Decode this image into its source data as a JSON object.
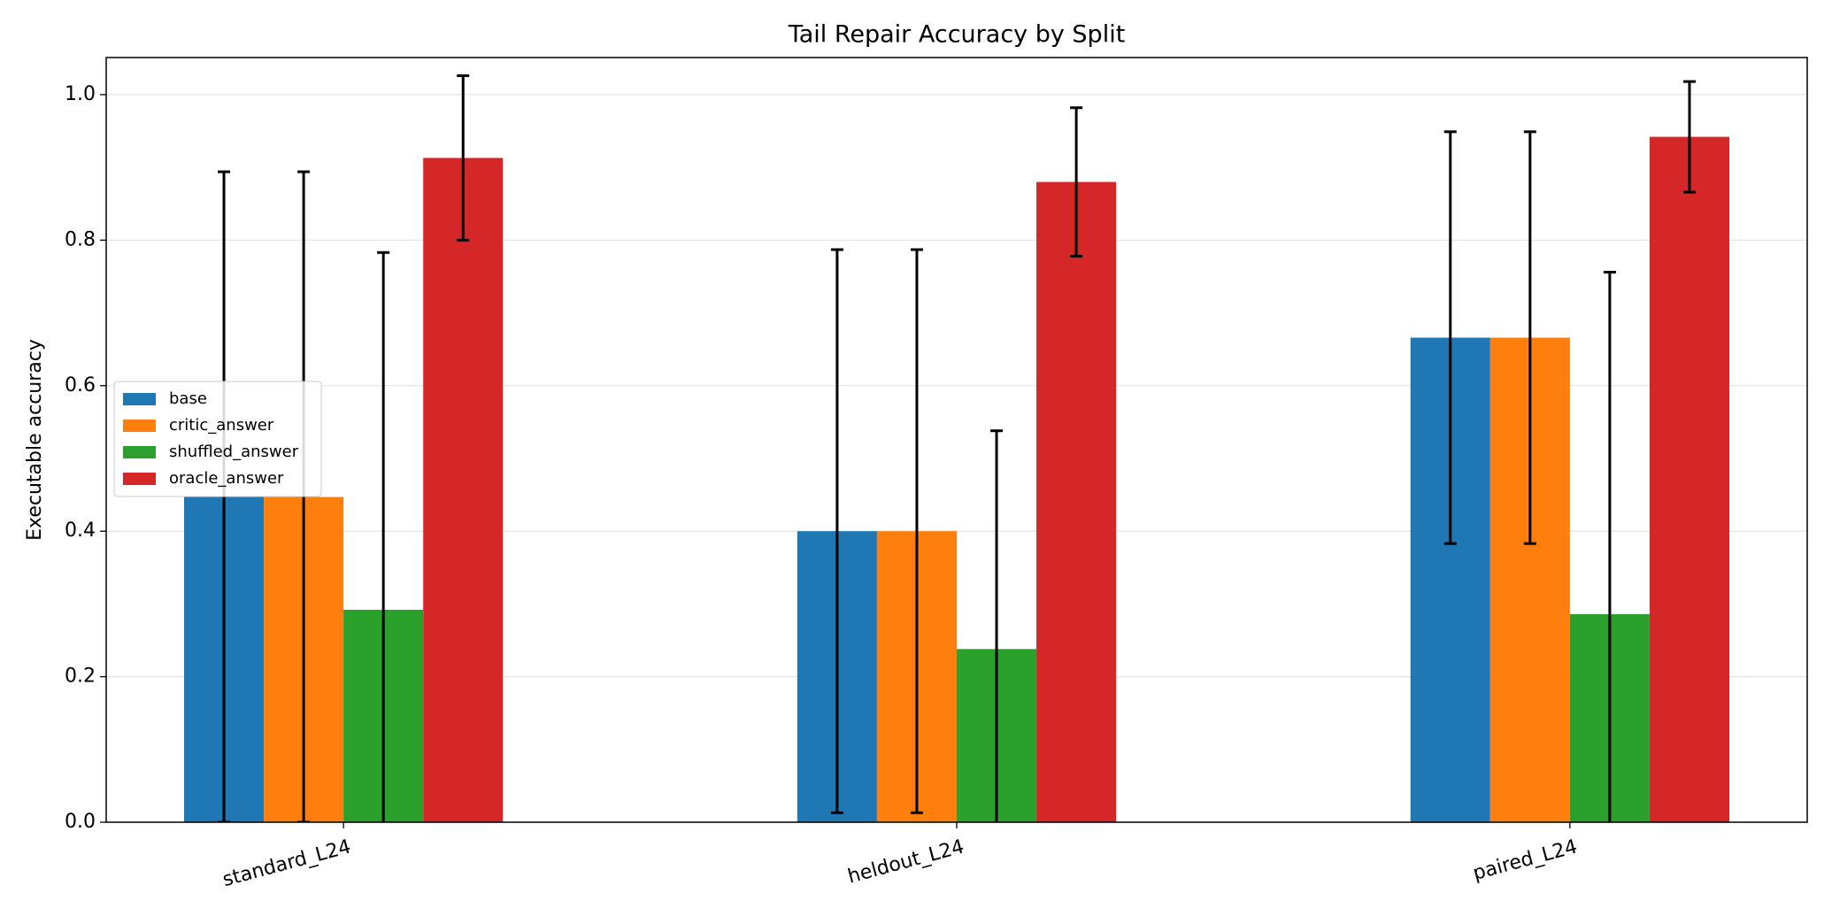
{
  "chart_data": {
    "type": "bar",
    "title": "Tail Repair Accuracy by Split",
    "y_label": "Executable accuracy",
    "categories": [
      "standard_L24",
      "heldout_L24",
      "paired_L24"
    ],
    "series": [
      {
        "name": "base",
        "color": "#1f77b4",
        "values": [
          0.447,
          0.4,
          0.666
        ],
        "errors": [
          0.447,
          0.387,
          0.283
        ]
      },
      {
        "name": "critic_answer",
        "color": "#ff7f0e",
        "values": [
          0.447,
          0.4,
          0.666
        ],
        "errors": [
          0.447,
          0.387,
          0.283
        ]
      },
      {
        "name": "shuffled_answer",
        "color": "#2ca02c",
        "values": [
          0.292,
          0.238,
          0.286
        ],
        "errors": [
          0.491,
          0.3,
          0.47
        ]
      },
      {
        "name": "oracle_answer",
        "color": "#d62728",
        "values": [
          0.913,
          0.88,
          0.942
        ],
        "errors": [
          0.113,
          0.102,
          0.076
        ]
      }
    ],
    "ylim": [
      0,
      1.051
    ],
    "yticks": [
      {
        "value": 0,
        "label": "0.0"
      },
      {
        "value": 0.2,
        "label": "0.2"
      },
      {
        "value": 0.4,
        "label": "0.4"
      },
      {
        "value": 0.6,
        "label": "0.6"
      },
      {
        "value": 0.8,
        "label": "0.8"
      },
      {
        "value": 1,
        "label": "1.0"
      }
    ],
    "grid": true,
    "legend": "center left"
  }
}
